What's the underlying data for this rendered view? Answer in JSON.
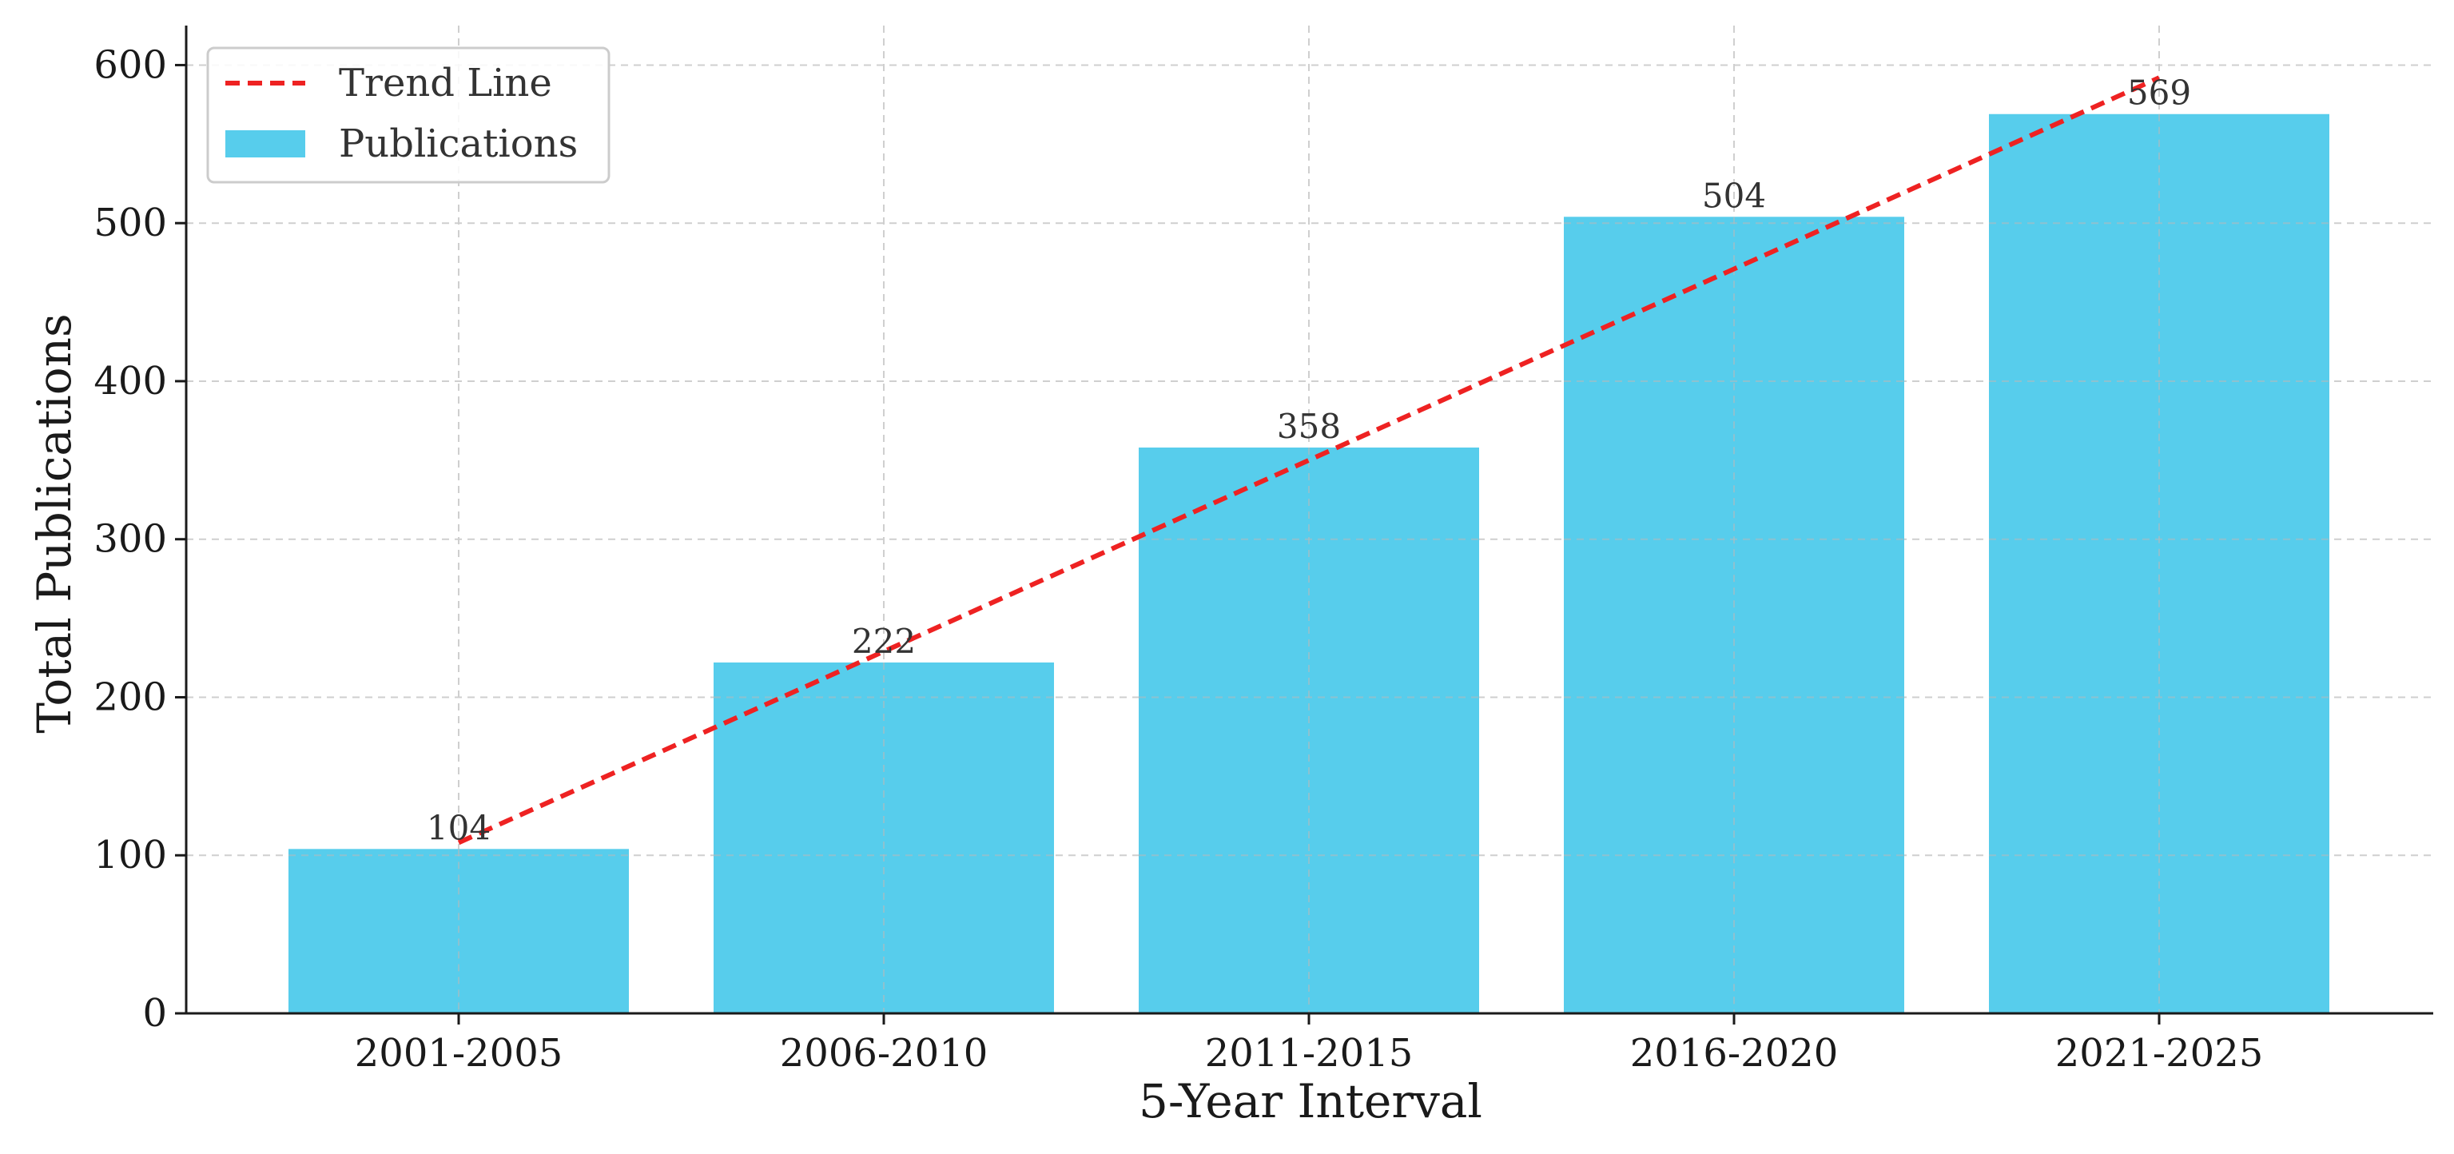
{
  "chart_data": {
    "type": "bar",
    "title": "",
    "xlabel": "5-Year Interval",
    "ylabel": "Total Publications",
    "categories": [
      "2001-2005",
      "2006-2010",
      "2011-2015",
      "2016-2020",
      "2021-2025"
    ],
    "series": [
      {
        "name": "Publications",
        "type": "bar",
        "values": [
          104,
          222,
          358,
          504,
          569
        ],
        "color": "#57CDEC"
      },
      {
        "name": "Trend Line",
        "type": "line",
        "style": "dashed",
        "values": [
          108,
          229,
          350,
          471,
          592
        ],
        "color": "#EE2222"
      }
    ],
    "data_labels": [
      "104",
      "222",
      "358",
      "504",
      "569"
    ],
    "ylim": [
      0,
      625
    ],
    "yticks": [
      0,
      100,
      200,
      300,
      400,
      500,
      600
    ],
    "grid": true,
    "legend_position": "top-left",
    "legend": [
      {
        "label": "Trend Line",
        "kind": "line",
        "color": "#EE2222"
      },
      {
        "label": "Publications",
        "kind": "bar",
        "color": "#57CDEC"
      }
    ]
  }
}
